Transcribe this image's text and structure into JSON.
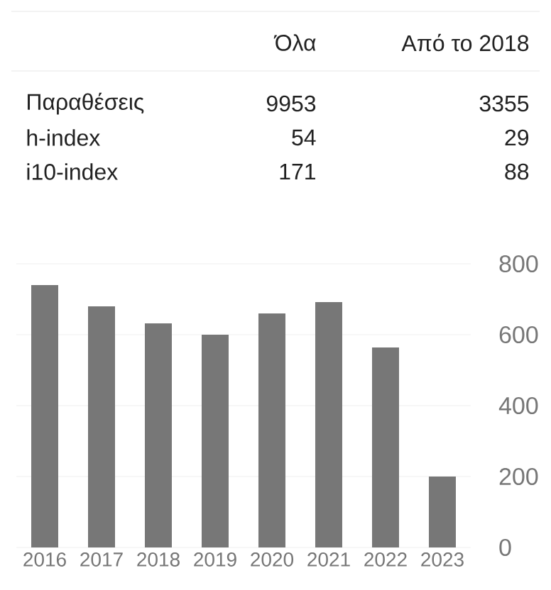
{
  "chart_data": [
    {
      "type": "other",
      "categories": [
        "Όλα",
        "Από το 2018"
      ],
      "y_categories": [
        "Παραθέσεις",
        "h-index",
        "i10-index"
      ],
      "cell_labels": [
        [
          "9953",
          "3355"
        ],
        [
          "54",
          "29"
        ],
        [
          "171",
          "88"
        ]
      ]
    },
    {
      "type": "bar",
      "categories": [
        "2016",
        "2017",
        "2018",
        "2019",
        "2020",
        "2021",
        "2022",
        "2023"
      ],
      "values": [
        740,
        680,
        632,
        600,
        660,
        692,
        564,
        200
      ],
      "color": "#777777",
      "ylim": [
        0,
        800
      ],
      "yticks": [
        0,
        200,
        400,
        600,
        800
      ],
      "grid": "y"
    }
  ]
}
